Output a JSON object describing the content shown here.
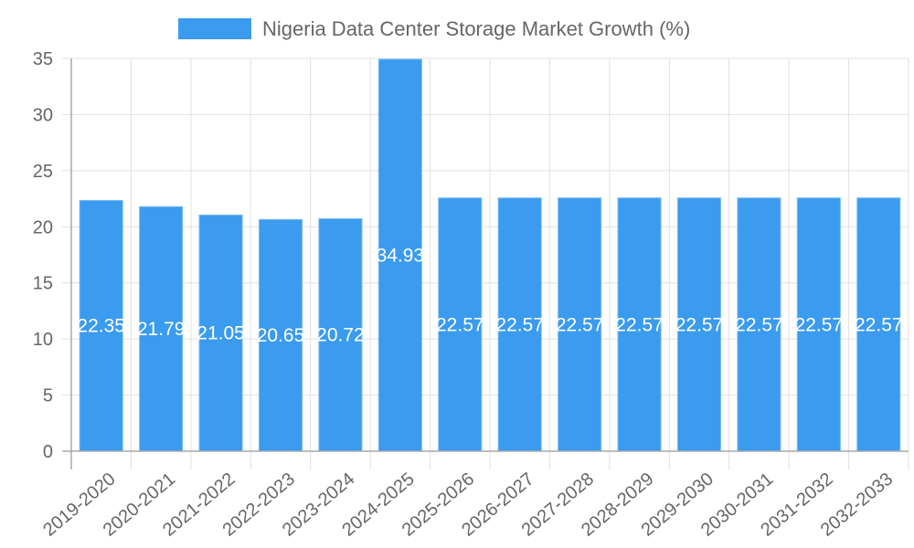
{
  "chart_data": {
    "type": "bar",
    "title": "",
    "legend": [
      {
        "label": "Nigeria Data Center Storage Market Growth (%)",
        "color": "#3a9bef"
      }
    ],
    "legend_position": "top",
    "xlabel": "",
    "ylabel": "",
    "ylim": [
      0,
      35
    ],
    "y_ticks": [
      0,
      5,
      10,
      15,
      20,
      25,
      30,
      35
    ],
    "grid": true,
    "categories": [
      "2019-2020",
      "2020-2021",
      "2021-2022",
      "2022-2023",
      "2023-2024",
      "2024-2025",
      "2025-2026",
      "2026-2027",
      "2027-2028",
      "2028-2029",
      "2029-2030",
      "2030-2031",
      "2031-2032",
      "2032-2033"
    ],
    "series": [
      {
        "name": "Nigeria Data Center Storage Market Growth (%)",
        "values": [
          22.35,
          21.79,
          21.05,
          20.65,
          20.72,
          34.93,
          22.57,
          22.57,
          22.57,
          22.57,
          22.57,
          22.57,
          22.57,
          22.57
        ],
        "color": "#3a9bef"
      }
    ]
  },
  "colors": {
    "bar": "#3a9bef",
    "bar_border": "#7dbcf3",
    "grid": "#e0e0e0",
    "axis": "#a8a8a8",
    "text": "#666666"
  }
}
